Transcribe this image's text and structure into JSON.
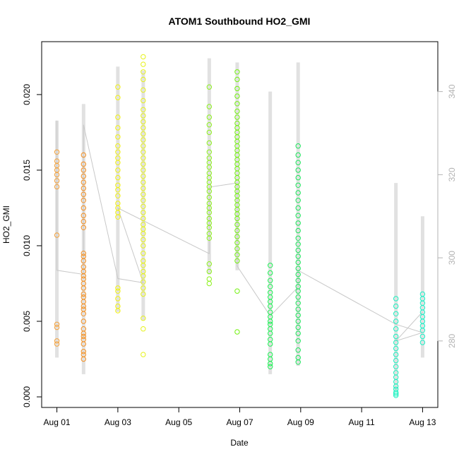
{
  "chart_data": {
    "type": "scatter",
    "title": "ATOM1 Southbound HO2_GMI",
    "xlabel": "Date",
    "ylabel": "HO2_GMI",
    "xlim": [
      "2016-07-31T12:00",
      "2016-08-13T12:00"
    ],
    "ylim": [
      -0.0007,
      0.0235
    ],
    "x_ticks": [
      {
        "date": "2016-08-01",
        "label": "Aug 01"
      },
      {
        "date": "2016-08-03",
        "label": "Aug 03"
      },
      {
        "date": "2016-08-05",
        "label": "Aug 05"
      },
      {
        "date": "2016-08-07",
        "label": "Aug 07"
      },
      {
        "date": "2016-08-09",
        "label": "Aug 09"
      },
      {
        "date": "2016-08-11",
        "label": "Aug 11"
      },
      {
        "date": "2016-08-13",
        "label": "Aug 13"
      }
    ],
    "y_ticks": [
      0.0,
      0.005,
      0.01,
      0.015,
      0.02
    ],
    "y_tick_labels": [
      "0.000",
      "0.005",
      "0.010",
      "0.015",
      "0.020"
    ],
    "right_axis": {
      "ylim": [
        264,
        352
      ],
      "ticks": [
        280,
        300,
        320,
        340
      ],
      "tick_labels": [
        "280",
        "300",
        "320",
        "340"
      ],
      "color": "#b3b3b3"
    },
    "grid": false,
    "marker": "open-circle",
    "secondary_line_color": "#c8c8c8",
    "flights": [
      {
        "date": "2016-08-01",
        "color": "#f5a23b",
        "ho2": [
          0.0035,
          0.0037,
          0.0046,
          0.0048,
          0.0107,
          0.0139,
          0.0143,
          0.0147,
          0.015,
          0.0153,
          0.0156,
          0.0162
        ]
      },
      {
        "date": "2016-08-01T21:00",
        "color": "#f59020",
        "ho2": [
          0.0025,
          0.0028,
          0.003,
          0.0035,
          0.0038,
          0.004,
          0.0042,
          0.0045,
          0.005,
          0.0055,
          0.0058,
          0.006,
          0.0063,
          0.0066,
          0.0068,
          0.0072,
          0.0075,
          0.0078,
          0.008,
          0.0083,
          0.0086,
          0.009,
          0.0093,
          0.0095,
          0.0112,
          0.0116,
          0.012,
          0.0125,
          0.013,
          0.0134,
          0.0138,
          0.0142,
          0.0146,
          0.015,
          0.0154,
          0.016
        ]
      },
      {
        "date": "2016-08-03",
        "color": "#f2f20f",
        "ho2": [
          0.0057,
          0.006,
          0.0065,
          0.007,
          0.0072,
          0.0119,
          0.0122,
          0.0125,
          0.0128,
          0.0133,
          0.0137,
          0.014,
          0.0145,
          0.015,
          0.0155,
          0.0158,
          0.0162,
          0.0166,
          0.0172,
          0.0178,
          0.0185,
          0.0198,
          0.0205
        ]
      },
      {
        "date": "2016-08-03T20:00",
        "color": "#e6f21a",
        "ho2": [
          0.0028,
          0.0045,
          0.0052,
          0.0068,
          0.0072,
          0.0076,
          0.008,
          0.0083,
          0.0087,
          0.009,
          0.0095,
          0.01,
          0.0104,
          0.0108,
          0.0111,
          0.0114,
          0.0118,
          0.0122,
          0.0126,
          0.013,
          0.0134,
          0.0138,
          0.0142,
          0.0146,
          0.015,
          0.0154,
          0.0158,
          0.0162,
          0.0166,
          0.017,
          0.0174,
          0.0178,
          0.0182,
          0.0186,
          0.019,
          0.0196,
          0.0203,
          0.021,
          0.0215,
          0.022,
          0.0225
        ]
      },
      {
        "date": "2016-08-06",
        "color": "#8cf21a",
        "ho2": [
          0.0075,
          0.0078,
          0.0083,
          0.0088,
          0.0105,
          0.0108,
          0.0112,
          0.0115,
          0.0118,
          0.0122,
          0.0125,
          0.0128,
          0.0132,
          0.0136,
          0.0139,
          0.0142,
          0.0145,
          0.0148,
          0.0152,
          0.0155,
          0.0158,
          0.0162,
          0.0168,
          0.0175,
          0.018,
          0.0185,
          0.0192,
          0.0205
        ]
      },
      {
        "date": "2016-08-06T22:00",
        "color": "#73f20f",
        "ho2": [
          0.0043,
          0.007,
          0.009,
          0.0094,
          0.0098,
          0.0102,
          0.0106,
          0.011,
          0.0114,
          0.0118,
          0.0121,
          0.0124,
          0.0127,
          0.013,
          0.0133,
          0.0136,
          0.0139,
          0.0142,
          0.0145,
          0.0148,
          0.0151,
          0.0154,
          0.0157,
          0.016,
          0.0163,
          0.0166,
          0.0169,
          0.0172,
          0.0175,
          0.0178,
          0.0181,
          0.0185,
          0.0189,
          0.0194,
          0.0199,
          0.0204,
          0.021,
          0.0215
        ]
      },
      {
        "date": "2016-08-08",
        "color": "#1af252",
        "ho2": [
          0.002,
          0.0022,
          0.0025,
          0.0028,
          0.0035,
          0.0038,
          0.0042,
          0.0045,
          0.0048,
          0.005,
          0.0053,
          0.0056,
          0.006,
          0.0063,
          0.0066,
          0.0069,
          0.0073,
          0.0077,
          0.0082,
          0.0087
        ]
      },
      {
        "date": "2016-08-08T22:00",
        "color": "#1ae65a",
        "ho2": [
          0.0023,
          0.0026,
          0.0031,
          0.0037,
          0.0042,
          0.0046,
          0.005,
          0.0054,
          0.0058,
          0.0062,
          0.0066,
          0.007,
          0.0073,
          0.0077,
          0.0081,
          0.0085,
          0.0089,
          0.0093,
          0.0097,
          0.0101,
          0.0105,
          0.011,
          0.0115,
          0.012,
          0.0125,
          0.013,
          0.0135,
          0.014,
          0.0145,
          0.015,
          0.0155,
          0.016,
          0.0166
        ]
      },
      {
        "date": "2016-08-12T03:00",
        "color": "#1af2c0",
        "ho2": [
          0.0001,
          0.0002,
          0.0003,
          0.0005,
          0.0007,
          0.001,
          0.0013,
          0.0016,
          0.002,
          0.0024,
          0.0028,
          0.0032,
          0.0036,
          0.004,
          0.0045,
          0.005,
          0.0055,
          0.006,
          0.0065
        ]
      },
      {
        "date": "2016-08-13",
        "color": "#1af2c8",
        "ho2": [
          0.0036,
          0.004,
          0.0044,
          0.0047,
          0.005,
          0.0053,
          0.0056,
          0.0059,
          0.0062,
          0.0065,
          0.0068
        ]
      }
    ],
    "secondary_series": [
      {
        "date": "2016-08-01",
        "low": 276,
        "high": 333
      },
      {
        "date": "2016-08-01T21:00",
        "low": 272,
        "high": 337
      },
      {
        "date": "2016-08-03",
        "low": 287,
        "high": 346
      },
      {
        "date": "2016-08-03T20:00",
        "low": 285,
        "high": 345
      },
      {
        "date": "2016-08-06",
        "low": 296,
        "high": 348
      },
      {
        "date": "2016-08-06T22:00",
        "low": 297,
        "high": 347
      },
      {
        "date": "2016-08-08",
        "low": 272,
        "high": 340
      },
      {
        "date": "2016-08-08T22:00",
        "low": 274,
        "high": 347
      },
      {
        "date": "2016-08-12T03:00",
        "low": 268,
        "high": 318
      },
      {
        "date": "2016-08-13",
        "low": 276,
        "high": 310
      }
    ],
    "secondary_path": [
      [
        "2016-08-01",
        333
      ],
      [
        "2016-08-01",
        297
      ],
      [
        "2016-08-01T21:00",
        296
      ],
      [
        "2016-08-01T21:00",
        332
      ],
      [
        "2016-08-03",
        295
      ],
      [
        "2016-08-03T20:00",
        294
      ],
      [
        "2016-08-03",
        312
      ],
      [
        "2016-08-06",
        301
      ],
      [
        "2016-08-06",
        317
      ],
      [
        "2016-08-06T22:00",
        318
      ],
      [
        "2016-08-06T22:00",
        298
      ],
      [
        "2016-08-08",
        286
      ],
      [
        "2016-08-08T22:00",
        293
      ],
      [
        "2016-08-08T22:00",
        297
      ],
      [
        "2016-08-12T03:00",
        284
      ],
      [
        "2016-08-13",
        282
      ],
      [
        "2016-08-12T03:00",
        280
      ],
      [
        "2016-08-13",
        287
      ]
    ]
  }
}
